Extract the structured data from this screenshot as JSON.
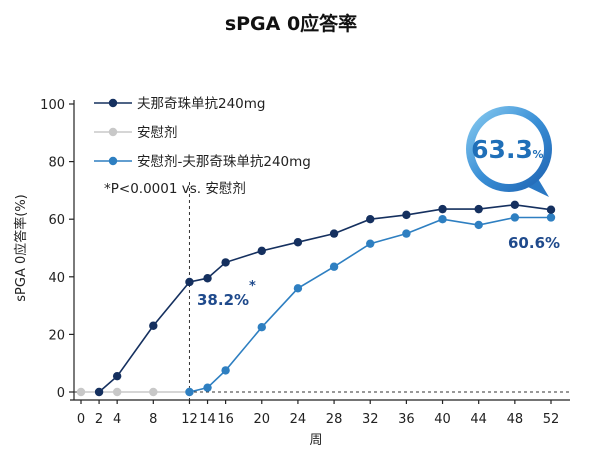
{
  "chart_data": {
    "type": "line",
    "title": "sPGA 0应答率",
    "xlabel": "周",
    "ylabel": "sPGA 0应答率(%)",
    "x": [
      0,
      2,
      4,
      8,
      12,
      14,
      16,
      20,
      24,
      28,
      32,
      36,
      40,
      44,
      48,
      52
    ],
    "x_ticks": [
      "0",
      "2",
      "4",
      "8",
      "12",
      "14",
      "16",
      "20",
      "24",
      "28",
      "32",
      "36",
      "40",
      "44",
      "48",
      "52"
    ],
    "y_ticks": [
      "0",
      "20",
      "40",
      "60",
      "80",
      "100"
    ],
    "xlim": [
      0,
      52
    ],
    "ylim": [
      0,
      100
    ],
    "grid": false,
    "legend_position": "top-left",
    "series": [
      {
        "name": "夫那奇珠单抗240mg",
        "color": "#15305f",
        "x": [
          2,
          4,
          8,
          12,
          14,
          16,
          20,
          24,
          28,
          32,
          36,
          40,
          44,
          48,
          52
        ],
        "values": [
          0,
          5.5,
          23,
          38.2,
          39.5,
          45,
          49,
          52,
          55,
          60,
          61.5,
          63.5,
          63.5,
          65,
          63.3
        ]
      },
      {
        "name": "安慰剂",
        "color": "#c8c8c8",
        "x": [
          0,
          2,
          4,
          8,
          12
        ],
        "values": [
          0,
          0,
          0,
          0,
          0
        ]
      },
      {
        "name": "安慰剂-夫那奇珠单抗240mg",
        "color": "#2e7fc1",
        "x": [
          12,
          14,
          16,
          20,
          24,
          28,
          32,
          36,
          40,
          44,
          48,
          52
        ],
        "values": [
          0,
          1.5,
          7.5,
          22.5,
          36,
          43.5,
          51.5,
          55,
          60,
          58,
          60.6,
          60.6
        ]
      }
    ],
    "annotations": {
      "footnote": "*P<0.0001 vs. 安慰剂",
      "week12_value": "38.2%",
      "star": "*",
      "placebo_end_value": "60.6%",
      "badge_number": "63.3",
      "badge_unit": "%",
      "reference_line_x": 12
    }
  },
  "colors": {
    "dark_blue": "#15305f",
    "mid_blue": "#2e7fc1",
    "grey": "#c8c8c8",
    "annotation_dark": "#1f4a8c",
    "badge_text": "#1f6fb8"
  }
}
